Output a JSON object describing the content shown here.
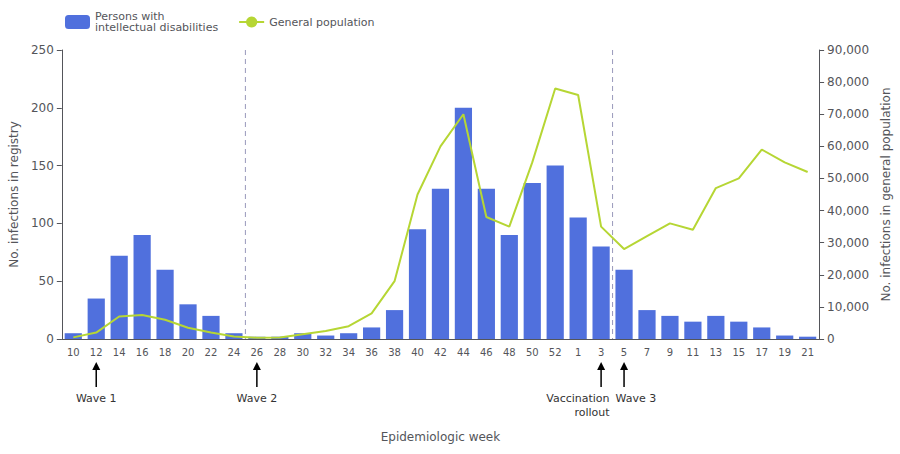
{
  "chart_data": {
    "type": "bar",
    "categories": [
      "10",
      "12",
      "14",
      "16",
      "18",
      "20",
      "22",
      "24",
      "26",
      "28",
      "30",
      "32",
      "34",
      "36",
      "38",
      "40",
      "42",
      "44",
      "46",
      "48",
      "50",
      "52",
      "1",
      "3",
      "5",
      "7",
      "9",
      "11",
      "13",
      "15",
      "17",
      "19",
      "21"
    ],
    "xlabel": "Epidemiologic week",
    "ylabel": "No. infections in registry",
    "y2label": "No. infections in general population",
    "series": [
      {
        "name": "Persons with\nintellectual disabilities",
        "type": "bar",
        "values": [
          5,
          35,
          72,
          90,
          60,
          30,
          20,
          5,
          2,
          2,
          5,
          3,
          5,
          10,
          25,
          95,
          130,
          200,
          130,
          90,
          135,
          150,
          105,
          80,
          60,
          25,
          20,
          15,
          20,
          15,
          10,
          3,
          2
        ]
      },
      {
        "name": "General population",
        "type": "line",
        "axis": "y2",
        "values": [
          500,
          2000,
          7000,
          7500,
          6000,
          3500,
          2000,
          800,
          400,
          500,
          1500,
          2500,
          4000,
          8000,
          18000,
          45000,
          60000,
          70000,
          38000,
          35000,
          55000,
          78000,
          76000,
          35000,
          28000,
          32000,
          36000,
          34000,
          47000,
          50000,
          59000,
          55000,
          52000
        ]
      }
    ],
    "ylim": [
      0,
      250
    ],
    "yticks": [
      0,
      50,
      100,
      150,
      200,
      250
    ],
    "y2lim": [
      0,
      90000
    ],
    "y2ticks": [
      0,
      {
        "value": 10000,
        "label": "10,000"
      },
      {
        "value": 20000,
        "label": "20,000"
      },
      {
        "value": 30000,
        "label": "30,000"
      },
      {
        "value": 40000,
        "label": "40,000"
      },
      {
        "value": 50000,
        "label": "50,000"
      },
      {
        "value": 60000,
        "label": "60,000"
      },
      {
        "value": 70000,
        "label": "70,000"
      },
      {
        "value": 80000,
        "label": "80,000"
      },
      {
        "value": 90000,
        "label": "90,000"
      }
    ],
    "vlines": [
      {
        "before": "26",
        "line_style": "dashed"
      },
      {
        "before": "5",
        "line_style": "dashed"
      }
    ],
    "annotations": [
      {
        "text": "Wave 1",
        "x": "12"
      },
      {
        "text": "Wave 2",
        "x": "26"
      },
      {
        "text": "Vaccination\nrollout",
        "x": "3"
      },
      {
        "text": "Wave 3",
        "x": "5"
      }
    ],
    "legend": "upper left",
    "grid": false
  }
}
